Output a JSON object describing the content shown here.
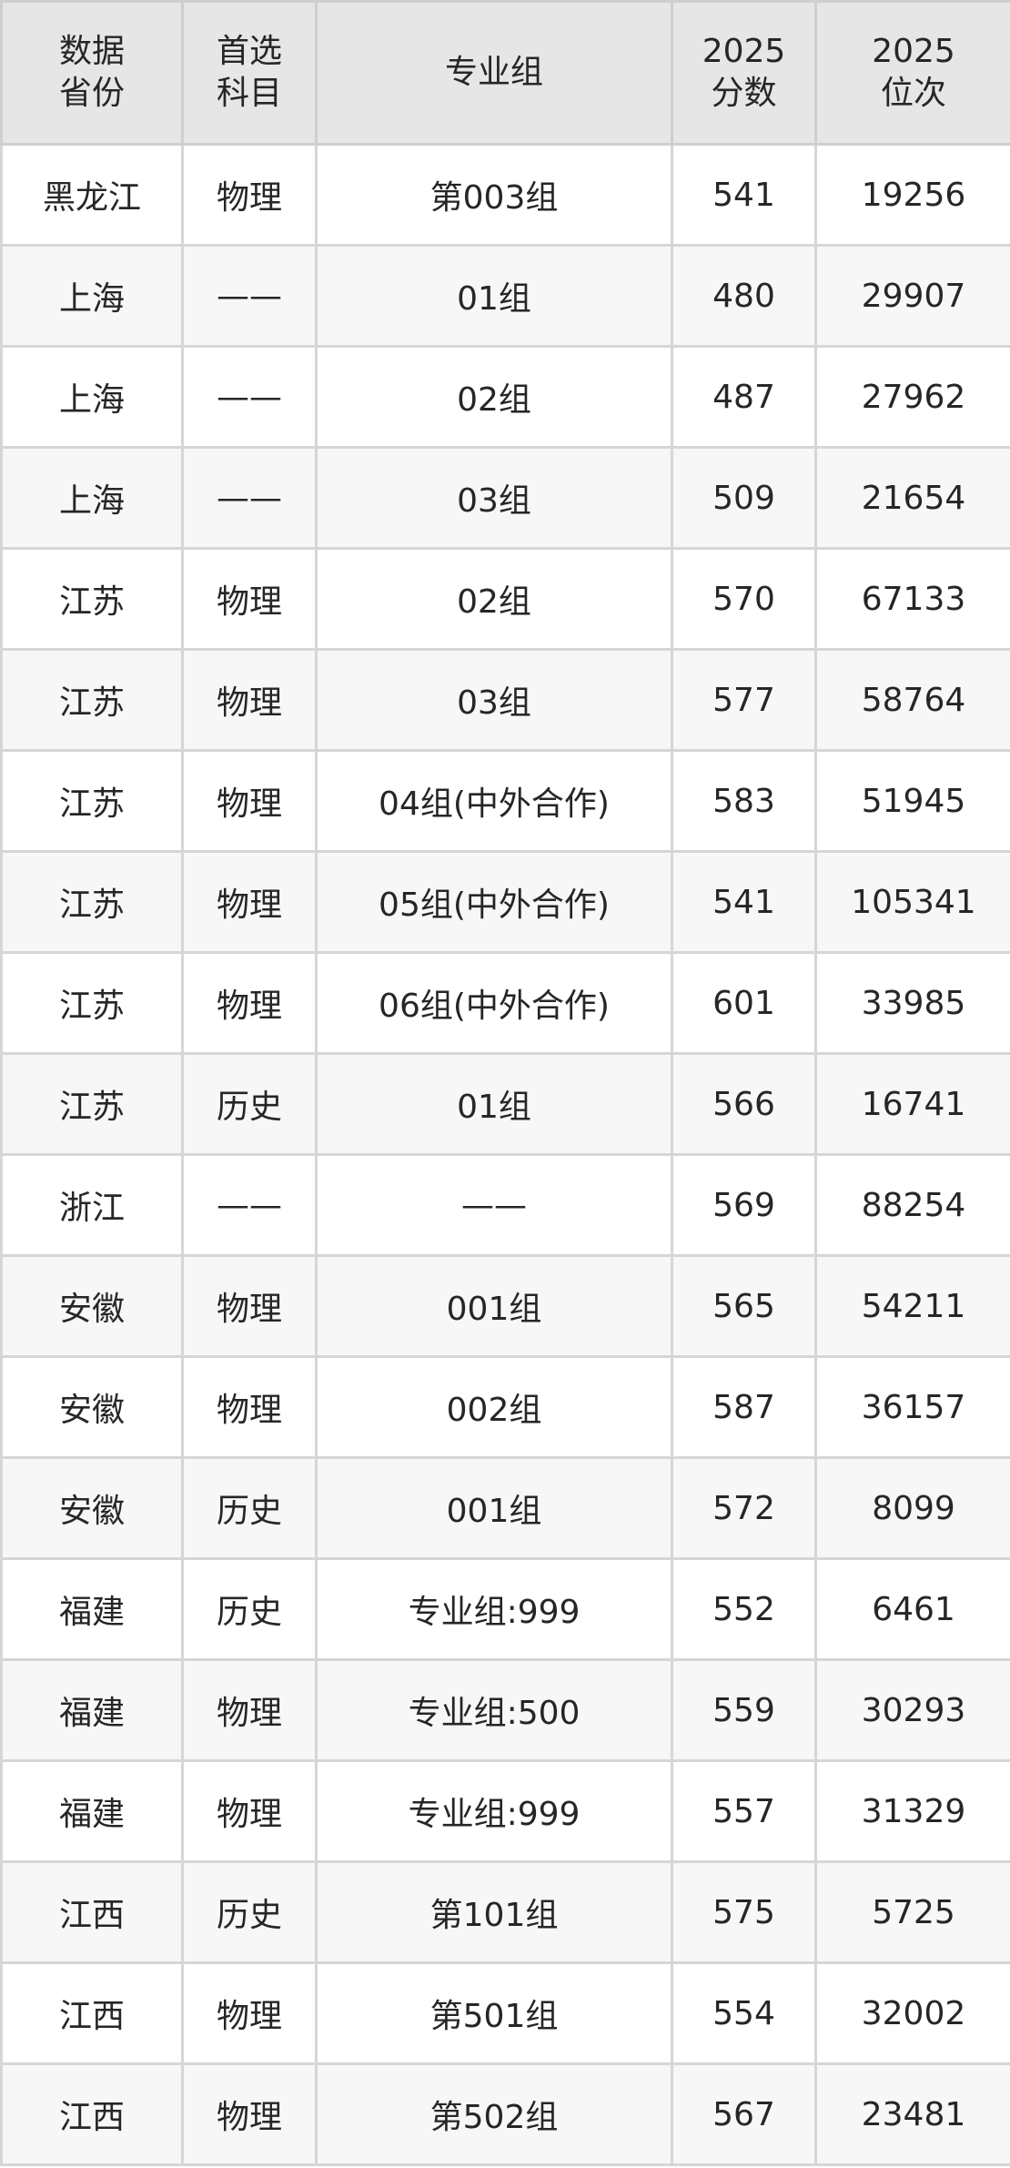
{
  "headers": [
    "数据\n省份",
    "首选\n科目",
    "专业组",
    "2025\n分数",
    "2025\n位次"
  ],
  "rows": [
    [
      "黑龙江",
      "物理",
      "第003组",
      "541",
      "19256"
    ],
    [
      "上海",
      "——",
      "01组",
      "480",
      "29907"
    ],
    [
      "上海",
      "——",
      "02组",
      "487",
      "27962"
    ],
    [
      "上海",
      "——",
      "03组",
      "509",
      "21654"
    ],
    [
      "江苏",
      "物理",
      "02组",
      "570",
      "67133"
    ],
    [
      "江苏",
      "物理",
      "03组",
      "577",
      "58764"
    ],
    [
      "江苏",
      "物理",
      "04组(中外合作)",
      "583",
      "51945"
    ],
    [
      "江苏",
      "物理",
      "05组(中外合作)",
      "541",
      "105341"
    ],
    [
      "江苏",
      "物理",
      "06组(中外合作)",
      "601",
      "33985"
    ],
    [
      "江苏",
      "历史",
      "01组",
      "566",
      "16741"
    ],
    [
      "浙江",
      "——",
      "——",
      "569",
      "88254"
    ],
    [
      "安徽",
      "物理",
      "001组",
      "565",
      "54211"
    ],
    [
      "安徽",
      "物理",
      "002组",
      "587",
      "36157"
    ],
    [
      "安徽",
      "历史",
      "001组",
      "572",
      "8099"
    ],
    [
      "福建",
      "历史",
      "专业组:999",
      "552",
      "6461"
    ],
    [
      "福建",
      "物理",
      "专业组:500",
      "559",
      "30293"
    ],
    [
      "福建",
      "物理",
      "专业组:999",
      "557",
      "31329"
    ],
    [
      "江西",
      "历史",
      "第101组",
      "575",
      "5725"
    ],
    [
      "江西",
      "物理",
      "第501组",
      "554",
      "32002"
    ],
    [
      "江西",
      "物理",
      "第502组",
      "567",
      "23481"
    ]
  ]
}
